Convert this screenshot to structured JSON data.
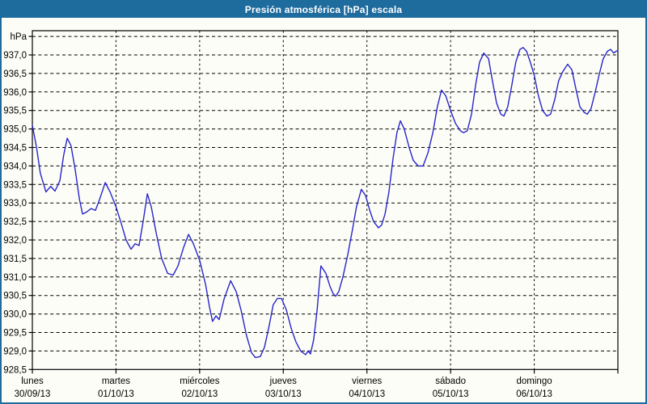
{
  "window": {
    "title": "Presión atmosférica [hPa] escala"
  },
  "colors": {
    "frame_blue": "#1e6b9d",
    "line_blue": "#2626c9",
    "grid_black": "#000000",
    "background": "#fdfdf8"
  },
  "chart_data": {
    "type": "line",
    "title": "Presión atmosférica [hPa] escala",
    "ylabel": "hPa",
    "ylim": [
      928.5,
      937.5
    ],
    "ytick_step": 0.5,
    "grid": "dashed",
    "legend_position": "none",
    "x_unit": "hours_from_monday_00",
    "xlim": [
      0,
      168
    ],
    "yticks": [
      {
        "v": 937.5,
        "label": "hPa"
      },
      {
        "v": 937.0,
        "label": "937,0"
      },
      {
        "v": 936.5,
        "label": "936,5"
      },
      {
        "v": 936.0,
        "label": "936,0"
      },
      {
        "v": 935.5,
        "label": "935,5"
      },
      {
        "v": 935.0,
        "label": "935,0"
      },
      {
        "v": 934.5,
        "label": "934,5"
      },
      {
        "v": 934.0,
        "label": "934,0"
      },
      {
        "v": 933.5,
        "label": "933,5"
      },
      {
        "v": 933.0,
        "label": "933,0"
      },
      {
        "v": 932.5,
        "label": "932,5"
      },
      {
        "v": 932.0,
        "label": "932,0"
      },
      {
        "v": 931.5,
        "label": "931,5"
      },
      {
        "v": 931.0,
        "label": "931,0"
      },
      {
        "v": 930.5,
        "label": "930,5"
      },
      {
        "v": 930.0,
        "label": "930,0"
      },
      {
        "v": 929.5,
        "label": "929,5"
      },
      {
        "v": 929.0,
        "label": "929,0"
      },
      {
        "v": 928.5,
        "label": "928,5"
      }
    ],
    "x_days": [
      {
        "day": "lunes",
        "date": "30/09/13"
      },
      {
        "day": "martes",
        "date": "01/10/13"
      },
      {
        "day": "miércoles",
        "date": "02/10/13"
      },
      {
        "day": "jueves",
        "date": "03/10/13"
      },
      {
        "day": "viernes",
        "date": "04/10/13"
      },
      {
        "day": "sábado",
        "date": "05/10/13"
      },
      {
        "day": "domingo",
        "date": "06/10/13"
      }
    ],
    "series": [
      {
        "name": "presión atmosférica",
        "color": "#2626c9",
        "points": [
          [
            0,
            935.1
          ],
          [
            1.2,
            934.5
          ],
          [
            2.3,
            933.8
          ],
          [
            3.9,
            933.3
          ],
          [
            5.3,
            933.45
          ],
          [
            6.5,
            933.32
          ],
          [
            7.9,
            933.6
          ],
          [
            9,
            934.3
          ],
          [
            10,
            934.75
          ],
          [
            11.1,
            934.55
          ],
          [
            12.3,
            933.9
          ],
          [
            13.5,
            933.1
          ],
          [
            14.4,
            932.7
          ],
          [
            15.5,
            932.75
          ],
          [
            16.9,
            932.85
          ],
          [
            18.1,
            932.8
          ],
          [
            19.3,
            933.1
          ],
          [
            20.9,
            933.55
          ],
          [
            22.3,
            933.3
          ],
          [
            24,
            932.9
          ],
          [
            25.5,
            932.45
          ],
          [
            26.9,
            932.0
          ],
          [
            28.3,
            931.75
          ],
          [
            29.5,
            931.9
          ],
          [
            30.6,
            931.85
          ],
          [
            31.8,
            932.5
          ],
          [
            33,
            933.25
          ],
          [
            34.1,
            932.9
          ],
          [
            35.5,
            932.2
          ],
          [
            37.1,
            931.5
          ],
          [
            38.8,
            931.1
          ],
          [
            40.4,
            931.05
          ],
          [
            41.8,
            931.3
          ],
          [
            43.4,
            931.8
          ],
          [
            44.8,
            932.15
          ],
          [
            46.2,
            931.9
          ],
          [
            48,
            931.45
          ],
          [
            49.7,
            930.8
          ],
          [
            50.8,
            930.2
          ],
          [
            51.7,
            929.8
          ],
          [
            52.7,
            929.95
          ],
          [
            53.6,
            929.85
          ],
          [
            55,
            930.4
          ],
          [
            56.9,
            930.9
          ],
          [
            58.5,
            930.6
          ],
          [
            59.9,
            930.1
          ],
          [
            61.5,
            929.4
          ],
          [
            62.9,
            928.95
          ],
          [
            64,
            928.82
          ],
          [
            65.4,
            928.85
          ],
          [
            66.6,
            929.1
          ],
          [
            68,
            929.7
          ],
          [
            69.1,
            930.25
          ],
          [
            70.3,
            930.42
          ],
          [
            71.5,
            930.42
          ],
          [
            72.9,
            930.1
          ],
          [
            74.3,
            929.6
          ],
          [
            75.6,
            929.25
          ],
          [
            77,
            929.0
          ],
          [
            78.4,
            928.9
          ],
          [
            79.1,
            929.0
          ],
          [
            79.8,
            928.92
          ],
          [
            80.7,
            929.3
          ],
          [
            81.7,
            930.1
          ],
          [
            82.8,
            931.3
          ],
          [
            84.2,
            931.1
          ],
          [
            85.4,
            930.75
          ],
          [
            86.3,
            930.55
          ],
          [
            87,
            930.48
          ],
          [
            87.9,
            930.6
          ],
          [
            89.1,
            931.0
          ],
          [
            90.5,
            931.6
          ],
          [
            91.9,
            932.3
          ],
          [
            93,
            932.9
          ],
          [
            94.4,
            933.37
          ],
          [
            95.6,
            933.2
          ],
          [
            96.8,
            932.8
          ],
          [
            97.9,
            932.5
          ],
          [
            99.3,
            932.33
          ],
          [
            100.2,
            932.4
          ],
          [
            101.2,
            932.7
          ],
          [
            102.3,
            933.3
          ],
          [
            103.5,
            934.2
          ],
          [
            104.6,
            934.9
          ],
          [
            105.6,
            935.22
          ],
          [
            106.7,
            935.0
          ],
          [
            108.1,
            934.5
          ],
          [
            109.3,
            934.15
          ],
          [
            110.7,
            934.0
          ],
          [
            112.1,
            934.0
          ],
          [
            113.5,
            934.35
          ],
          [
            114.9,
            934.9
          ],
          [
            116.2,
            935.6
          ],
          [
            117.4,
            936.05
          ],
          [
            118.6,
            935.9
          ],
          [
            120,
            935.5
          ],
          [
            121.4,
            935.15
          ],
          [
            122.8,
            934.95
          ],
          [
            123.7,
            934.9
          ],
          [
            124.8,
            934.95
          ],
          [
            126,
            935.4
          ],
          [
            127.2,
            936.2
          ],
          [
            128.3,
            936.8
          ],
          [
            129.5,
            937.05
          ],
          [
            130.9,
            936.9
          ],
          [
            132,
            936.3
          ],
          [
            133.2,
            935.7
          ],
          [
            134.4,
            935.4
          ],
          [
            135.3,
            935.35
          ],
          [
            136.4,
            935.6
          ],
          [
            137.6,
            936.2
          ],
          [
            138.7,
            936.8
          ],
          [
            139.9,
            937.15
          ],
          [
            140.8,
            937.2
          ],
          [
            141.8,
            937.1
          ],
          [
            142.9,
            936.8
          ],
          [
            144,
            936.45
          ],
          [
            145.2,
            935.9
          ],
          [
            146.4,
            935.5
          ],
          [
            147.6,
            935.35
          ],
          [
            148.7,
            935.4
          ],
          [
            149.9,
            935.8
          ],
          [
            151,
            936.3
          ],
          [
            152.2,
            936.55
          ],
          [
            153.6,
            936.75
          ],
          [
            154.8,
            936.6
          ],
          [
            155.9,
            936.1
          ],
          [
            157.1,
            935.6
          ],
          [
            158.3,
            935.45
          ],
          [
            159.2,
            935.4
          ],
          [
            160.3,
            935.55
          ],
          [
            161.5,
            936.0
          ],
          [
            162.7,
            936.5
          ],
          [
            163.8,
            936.9
          ],
          [
            165,
            937.1
          ],
          [
            165.9,
            937.15
          ],
          [
            166.8,
            937.05
          ],
          [
            167.5,
            937.1
          ],
          [
            168,
            937.12
          ]
        ]
      }
    ]
  }
}
